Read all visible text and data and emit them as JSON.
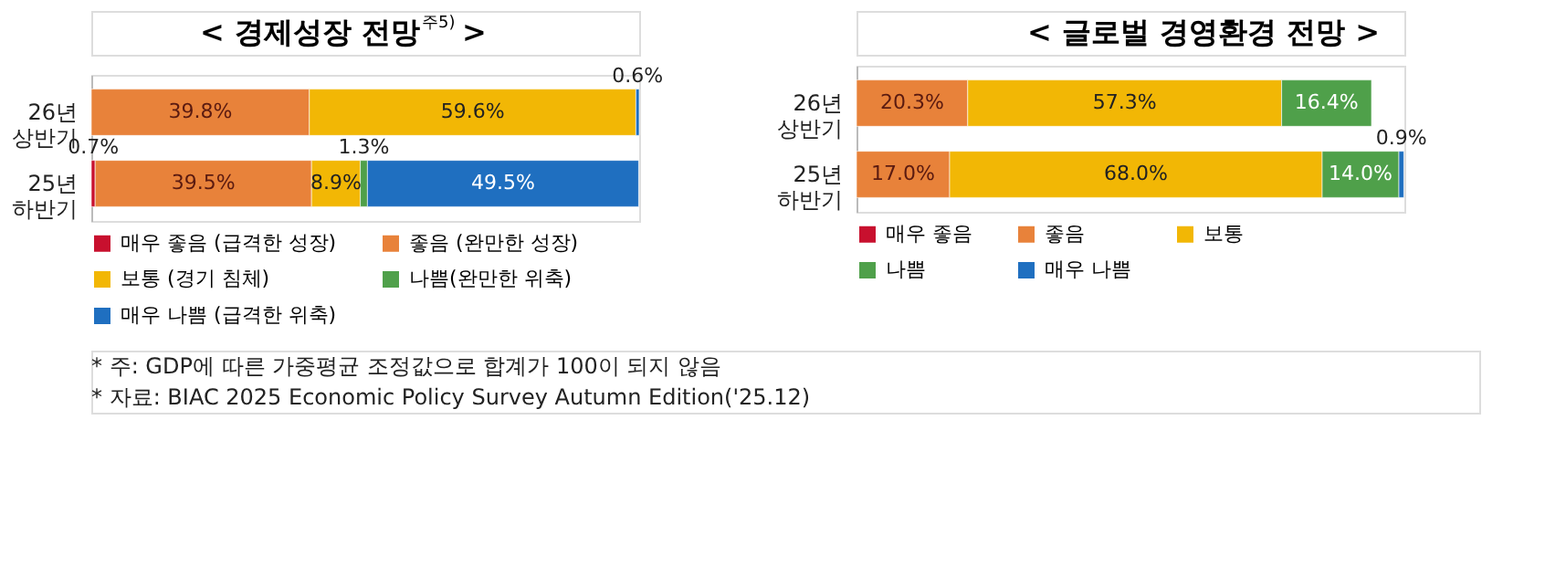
{
  "chart_data": [
    {
      "type": "bar",
      "orientation": "horizontal",
      "stacked": true,
      "title": "< 경제성장 전망$^{주5)}$ >",
      "categories": [
        "26년 상반기",
        "25년 하반기"
      ],
      "xlim": [
        0,
        100
      ],
      "tick_labels": "y",
      "legend": "bottom",
      "series": [
        {
          "name": "매우 좋음 (급격한 성장)",
          "color": "#c8102e",
          "values": [
            null,
            0.7
          ],
          "value_labels": [
            null,
            "0.7%"
          ]
        },
        {
          "name": "좋음 (완만한 성장)",
          "color": "#e8823a",
          "values": [
            39.8,
            39.5
          ],
          "value_labels": [
            "39.8%",
            "39.5%"
          ]
        },
        {
          "name": "보통 (경기 침체)",
          "color": "#f2b705",
          "values": [
            59.6,
            8.9
          ],
          "value_labels": [
            "59.6%",
            "8.9%"
          ]
        },
        {
          "name": "나쁨(완만한 위축)",
          "color": "#4fa04a",
          "values": [
            null,
            1.3
          ],
          "value_labels": [
            null,
            "1.3%"
          ]
        },
        {
          "name": "매우 나쁨 (급격한 위축)",
          "color": "#1f6fc0",
          "values": [
            0.6,
            49.5
          ],
          "value_labels": [
            "0.6%",
            "49.5%"
          ]
        }
      ],
      "annotations": [
        "* 주: GDP에 따른 가중평균 조정값으로 합계가 100이 되지 않음",
        "* 자료: BIAC 2025 Economic Policy Survey Autumn Edition('25.12)"
      ]
    },
    {
      "type": "bar",
      "orientation": "horizontal",
      "stacked": true,
      "title": "< 글로벌 경영환경 전망 >",
      "categories": [
        "26년 상반기",
        "25년 하반기"
      ],
      "xlim": [
        0,
        100
      ],
      "tick_labels": "y",
      "legend": "bottom",
      "series": [
        {
          "name": "매우 좋음",
          "color": "#c8102e",
          "values": [
            null,
            null
          ],
          "value_labels": [
            null,
            null
          ]
        },
        {
          "name": "좋음",
          "color": "#e8823a",
          "values": [
            20.3,
            17.0
          ],
          "value_labels": [
            "20.3%",
            "17.0%"
          ]
        },
        {
          "name": "보통",
          "color": "#f2b705",
          "values": [
            57.3,
            68.0
          ],
          "value_labels": [
            "57.3%",
            "68.0%"
          ]
        },
        {
          "name": "나쁨",
          "color": "#4fa04a",
          "values": [
            16.4,
            14.0
          ],
          "value_labels": [
            "16.4%",
            "14.0%"
          ]
        },
        {
          "name": "매우 나쁨",
          "color": "#1f6fc0",
          "values": [
            null,
            0.9
          ],
          "value_labels": [
            null,
            "0.9%"
          ]
        }
      ]
    }
  ]
}
